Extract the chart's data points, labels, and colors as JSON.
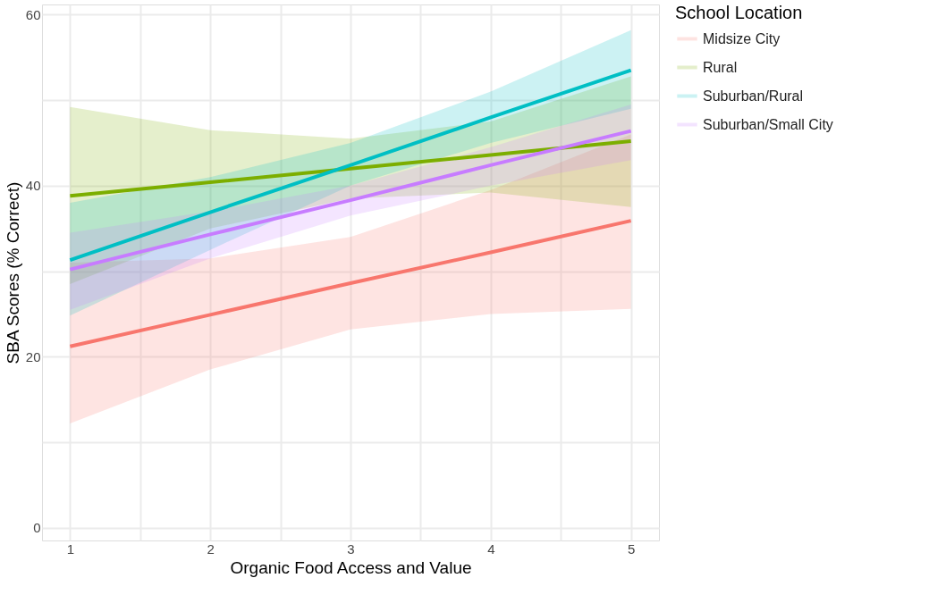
{
  "chart_data": {
    "type": "line",
    "xlabel": "Organic Food Access and Value",
    "ylabel": "SBA Scores (% Correct)",
    "legend_title": "School Location",
    "x": [
      1,
      2,
      3,
      4,
      5
    ],
    "series": [
      {
        "name": "Midsize City",
        "color": "#f8766d",
        "values": [
          21.2,
          24.9,
          28.6,
          32.2,
          35.9
        ],
        "lower": [
          12.2,
          18.5,
          23.2,
          25.0,
          25.6
        ],
        "upper": [
          31.0,
          31.5,
          34.0,
          39.5,
          46.0
        ]
      },
      {
        "name": "Rural",
        "color": "#7cae00",
        "values": [
          38.8,
          40.4,
          42.0,
          43.6,
          45.2
        ],
        "lower": [
          28.5,
          35.0,
          38.5,
          39.2,
          37.5
        ],
        "upper": [
          49.2,
          46.5,
          45.5,
          47.5,
          52.8
        ]
      },
      {
        "name": "Suburban/Rural",
        "color": "#00bfc4",
        "values": [
          31.3,
          36.9,
          42.4,
          48.0,
          53.5
        ],
        "lower": [
          24.8,
          32.5,
          40.0,
          45.0,
          49.0
        ],
        "upper": [
          38.0,
          41.0,
          45.0,
          51.0,
          58.2
        ]
      },
      {
        "name": "Suburban/Small City",
        "color": "#c77cff",
        "values": [
          30.2,
          34.3,
          38.3,
          42.4,
          46.4
        ],
        "lower": [
          25.5,
          31.5,
          36.5,
          40.0,
          43.0
        ],
        "upper": [
          34.5,
          37.0,
          40.0,
          44.5,
          49.5
        ]
      }
    ],
    "xlim": [
      0.8,
      5.2
    ],
    "ylim": [
      -1.5,
      61.2
    ],
    "xticks": [
      1,
      {
        "value": 1.5,
        "label": null
      },
      2,
      {
        "value": 2.5,
        "label": null
      },
      3,
      {
        "value": 3.5,
        "label": null
      },
      4,
      {
        "value": 4.5,
        "label": null
      },
      5
    ],
    "yticks": [
      0,
      {
        "value": 10,
        "label": null
      },
      20,
      {
        "value": 30,
        "label": null
      },
      40,
      {
        "value": 50,
        "label": null
      },
      60
    ],
    "grid": true,
    "legend": "right",
    "marker": "none",
    "line_style": "solid"
  }
}
